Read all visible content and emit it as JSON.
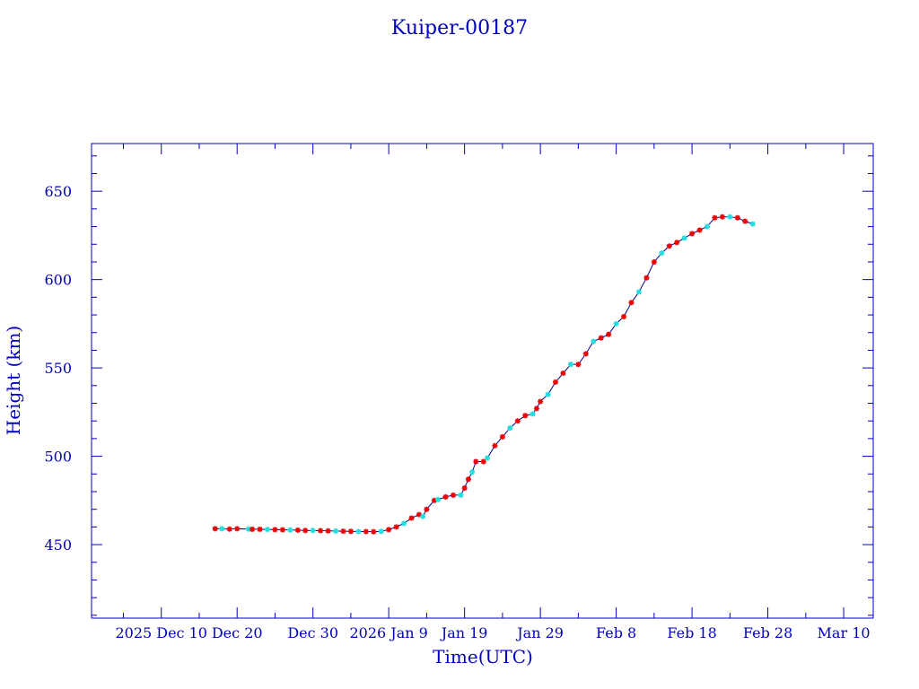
{
  "chart_data": {
    "type": "scatter",
    "title": "Kuiper-00187",
    "xlabel": "Time(UTC)",
    "ylabel": "Height (km)",
    "x_units": "days since 2025 Dec 10",
    "xlim": [
      -9.2,
      93.9
    ],
    "ylim": [
      408.4,
      677
    ],
    "x_ticks": [
      {
        "value": 0,
        "label": "2025 Dec 10"
      },
      {
        "value": 10,
        "label": "Dec 20"
      },
      {
        "value": 20,
        "label": "Dec 30"
      },
      {
        "value": 30,
        "label": "2026 Jan  9"
      },
      {
        "value": 40,
        "label": "Jan 19"
      },
      {
        "value": 50,
        "label": "Jan 29"
      },
      {
        "value": 60,
        "label": "Feb  8"
      },
      {
        "value": 70,
        "label": "Feb 18"
      },
      {
        "value": 80,
        "label": "Feb 28"
      },
      {
        "value": 90,
        "label": "Mar 10"
      }
    ],
    "y_ticks": [
      {
        "value": 450,
        "label": "450"
      },
      {
        "value": 500,
        "label": "500"
      },
      {
        "value": 550,
        "label": "550"
      },
      {
        "value": 600,
        "label": "600"
      },
      {
        "value": 650,
        "label": "650"
      }
    ],
    "grid": false,
    "colors": {
      "axis": "#0000c0",
      "line": "#00008b",
      "marker_primary": "#ee0000",
      "marker_secondary": "#22dddd"
    },
    "points": [
      [
        7.1,
        459
      ],
      [
        8,
        459
      ],
      [
        9,
        458.8
      ],
      [
        10,
        459
      ],
      [
        11.5,
        458.8
      ],
      [
        12,
        458.7
      ],
      [
        13,
        458.7
      ],
      [
        14,
        458.6
      ],
      [
        15,
        458.5
      ],
      [
        16,
        458.4
      ],
      [
        17,
        458.3
      ],
      [
        18,
        458.2
      ],
      [
        19,
        458
      ],
      [
        20,
        458
      ],
      [
        21,
        457.9
      ],
      [
        22,
        457.8
      ],
      [
        23,
        457.7
      ],
      [
        24,
        457.6
      ],
      [
        25,
        457.5
      ],
      [
        26,
        457.4
      ],
      [
        27,
        457.4
      ],
      [
        28,
        457.3
      ],
      [
        29,
        457.5
      ],
      [
        30,
        458.5
      ],
      [
        31,
        460
      ],
      [
        32,
        462
      ],
      [
        33,
        465
      ],
      [
        34,
        467
      ],
      [
        34.5,
        466
      ],
      [
        35,
        470
      ],
      [
        36,
        475
      ],
      [
        36.5,
        475.5
      ],
      [
        37.5,
        477
      ],
      [
        38.5,
        478
      ],
      [
        39.5,
        478
      ],
      [
        40,
        482
      ],
      [
        40.5,
        487
      ],
      [
        41,
        491
      ],
      [
        41.5,
        497
      ],
      [
        42.5,
        497
      ],
      [
        43,
        499
      ],
      [
        44,
        506
      ],
      [
        45,
        511
      ],
      [
        46,
        516
      ],
      [
        47,
        520
      ],
      [
        48,
        523
      ],
      [
        49,
        524
      ],
      [
        49.5,
        527
      ],
      [
        50,
        531
      ],
      [
        51,
        535
      ],
      [
        52,
        542
      ],
      [
        53,
        547
      ],
      [
        54,
        552
      ],
      [
        55,
        552
      ],
      [
        56,
        558
      ],
      [
        57,
        565
      ],
      [
        58,
        567
      ],
      [
        59,
        569
      ],
      [
        60,
        575
      ],
      [
        61,
        579
      ],
      [
        62,
        587
      ],
      [
        63,
        593
      ],
      [
        64,
        601
      ],
      [
        65,
        610
      ],
      [
        66,
        615
      ],
      [
        67,
        619
      ],
      [
        68,
        621
      ],
      [
        69,
        623.5
      ],
      [
        70,
        626
      ],
      [
        71,
        628
      ],
      [
        72,
        630
      ],
      [
        73,
        635
      ],
      [
        74,
        635.5
      ],
      [
        75,
        635.5
      ],
      [
        76,
        635
      ],
      [
        77,
        633
      ],
      [
        78,
        631.5
      ]
    ],
    "secondary_marker_every": 3
  }
}
